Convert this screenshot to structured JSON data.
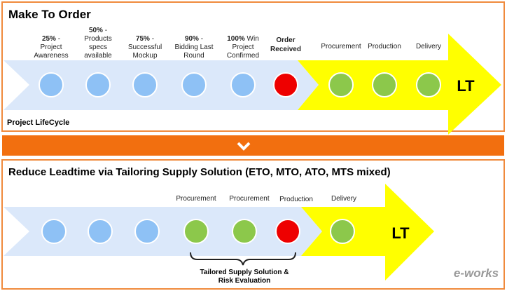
{
  "top": {
    "title": "Make To Order",
    "footer": "Project LifeCycle",
    "stages": [
      {
        "bold": "25%",
        "rest": " -",
        "l2": "Project",
        "l3": "Awareness",
        "color": "blue"
      },
      {
        "bold": "50%",
        "rest": " -",
        "l2": "Products",
        "l3": "specs",
        "l4": "available",
        "color": "blue"
      },
      {
        "bold": "75%",
        "rest": " -",
        "l2": "Successful",
        "l3": "Mockup",
        "color": "blue"
      },
      {
        "bold": "90%",
        "rest": " -",
        "l2": "Bidding Last",
        "l3": "Round",
        "color": "blue"
      },
      {
        "bold": "100%",
        "rest": " Win",
        "l2": "Project",
        "l3": "Confirmed",
        "color": "blue"
      },
      {
        "l1": "Order",
        "l2": "Received",
        "color": "red"
      },
      {
        "l1": "Procurement",
        "color": "green"
      },
      {
        "l1": "Production",
        "color": "green"
      },
      {
        "l1": "Delivery",
        "color": "green"
      }
    ],
    "lt": "LT"
  },
  "bottom": {
    "title": "Reduce Leadtime via Tailoring  Supply Solution (ETO, MTO, ATO, MTS mixed)",
    "labels": [
      "Procurement",
      "Procurement",
      "Production",
      "Delivery"
    ],
    "lt": "LT",
    "brace_l1": "Tailored Supply Solution &",
    "brace_l2": "Risk Evaluation"
  },
  "watermark": "e-works",
  "colors": {
    "border": "#f08a3c",
    "orange": "#f26f0f",
    "blue_band": "#dbe8fa",
    "blue": "#8ec1f5",
    "red": "#ee0000",
    "green": "#8cc84b",
    "yellow": "#ffff00"
  }
}
